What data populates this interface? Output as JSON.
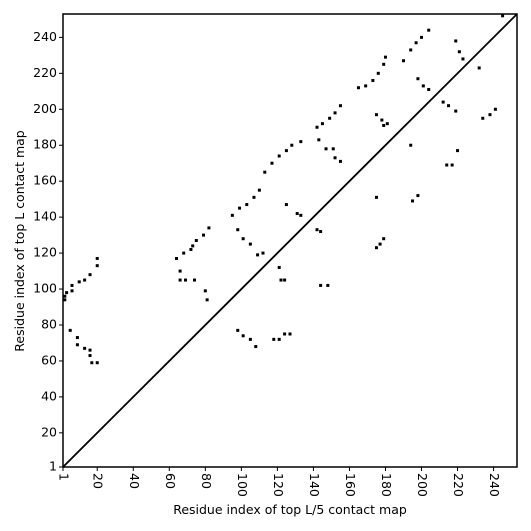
{
  "chart_data": {
    "type": "scatter",
    "xlabel": "Residue index of top L/5 contact map",
    "ylabel": "Residue index of top L contact map",
    "xlim": [
      1,
      253
    ],
    "ylim": [
      1,
      253
    ],
    "xticks": [
      1,
      20,
      40,
      60,
      80,
      100,
      120,
      140,
      160,
      180,
      200,
      220,
      240
    ],
    "yticks": [
      1,
      20,
      40,
      60,
      80,
      100,
      120,
      140,
      160,
      180,
      200,
      220,
      240
    ],
    "color": "#000000",
    "x": [
      2,
      2,
      3,
      6,
      6,
      10,
      13,
      16,
      20,
      20,
      64,
      68,
      72,
      73,
      75,
      79,
      82,
      95,
      99,
      103,
      107,
      110,
      113,
      117,
      121,
      125,
      128,
      133,
      142,
      145,
      149,
      152,
      155,
      165,
      169,
      173,
      176,
      179,
      180,
      190,
      194,
      197,
      200,
      204,
      245,
      66,
      66,
      69,
      74,
      80,
      81,
      98,
      101,
      105,
      109,
      112,
      121,
      122,
      124,
      125,
      131,
      133,
      142,
      144,
      144,
      148,
      143,
      147,
      151,
      152,
      155,
      175,
      178,
      181,
      179,
      175,
      175,
      177,
      179,
      194,
      195,
      198,
      198,
      201,
      204,
      212,
      215,
      219,
      214,
      217,
      220,
      219,
      221,
      223,
      232,
      234,
      238,
      241,
      5,
      9,
      9,
      13,
      16,
      16,
      17,
      20,
      98,
      101,
      105,
      108,
      118,
      121,
      124,
      127
    ],
    "y": [
      94,
      96,
      98,
      99,
      102,
      104,
      105,
      108,
      113,
      117,
      117,
      120,
      122,
      124,
      127,
      130,
      134,
      141,
      145,
      147,
      151,
      155,
      165,
      170,
      174,
      177,
      180,
      182,
      190,
      192,
      195,
      198,
      202,
      212,
      213,
      216,
      220,
      225,
      229,
      227,
      233,
      237,
      240,
      244,
      252,
      110,
      105,
      105,
      105,
      99,
      94,
      133,
      128,
      125,
      119,
      120,
      112,
      105,
      105,
      147,
      142,
      141,
      133,
      132,
      102,
      102,
      183,
      178,
      178,
      173,
      171,
      197,
      194,
      192,
      191,
      151,
      123,
      125,
      128,
      180,
      149,
      152,
      217,
      213,
      211,
      204,
      202,
      199,
      169,
      169,
      177,
      238,
      232,
      228,
      223,
      195,
      197,
      200,
      77,
      73,
      69,
      67,
      66,
      63,
      59,
      59,
      77,
      74,
      72,
      68,
      72,
      72,
      75,
      75
    ]
  }
}
